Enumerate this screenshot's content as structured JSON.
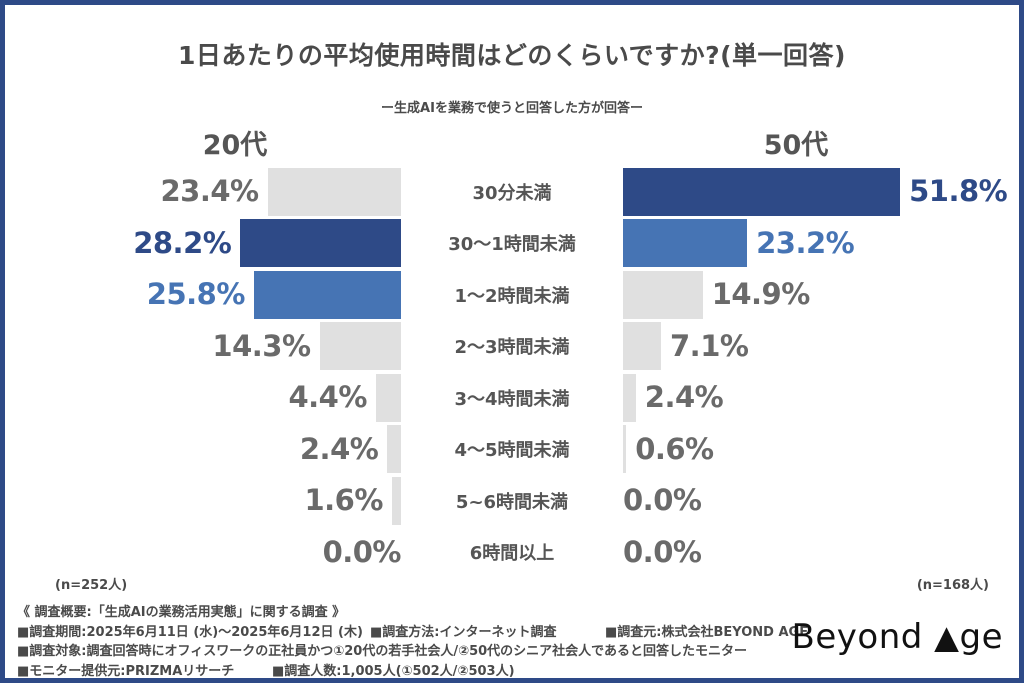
{
  "title": "1日あたりの平均使用時間はどのくらいですか?(単一回答)",
  "subtitle": "ー生成AIを業務で使うと回答した方が回答ー",
  "groups": {
    "left": {
      "label": "20代",
      "n_label": "(n=252人)"
    },
    "right": {
      "label": "50代",
      "n_label": "(n=168人)"
    }
  },
  "chart_data": {
    "type": "bar",
    "orientation": "horizontal-butterfly",
    "categories": [
      "30分未満",
      "30〜1時間未満",
      "1〜2時間未満",
      "2〜3時間未満",
      "3〜4時間未満",
      "4〜5時間未満",
      "5~6時間未満",
      "6時間以上"
    ],
    "series": [
      {
        "name": "20代",
        "values": [
          23.4,
          28.2,
          25.8,
          14.3,
          4.4,
          2.4,
          1.6,
          0.0
        ]
      },
      {
        "name": "50代",
        "values": [
          51.8,
          23.2,
          14.9,
          7.1,
          2.4,
          0.6,
          0.0,
          0.0
        ]
      }
    ],
    "value_suffix": "%",
    "bar_styles": {
      "left": [
        "gray",
        "navy",
        "blue",
        "gray",
        "gray",
        "gray",
        "gray",
        "gray"
      ],
      "right": [
        "navy",
        "blue",
        "gray",
        "gray",
        "gray",
        "gray",
        "gray",
        "gray"
      ]
    },
    "colors": {
      "navy": "#2e4a87",
      "blue": "#4674b4",
      "gray": "#e0e0e0",
      "gray_text": "#6a6a6a"
    },
    "xlim": [
      0,
      55
    ],
    "grid": false,
    "legend": false
  },
  "footer": {
    "line1": "《 調査概要:「生成AIの業務活用実態」に関する調査 》",
    "line2_period": "■調査期間:2025年6月11日 (水)〜2025年6月12日 (木)",
    "line2_method": "■調査方法:インターネット調査",
    "line2_source": "■調査元:株式会社BEYOND AGE",
    "line3": "■調査対象:調査回答時にオフィスワークの正社員かつ①20代の若手社会人/②50代のシニア社会人であると回答したモニター",
    "line4_monitor": "■モニター提供元:PRIZMAリサーチ",
    "line4_count": "■調査人数:1,005人(①502人/②503人)"
  },
  "logo": {
    "text_before": "Beyond ",
    "triangle": "▲",
    "text_after": "ge"
  }
}
